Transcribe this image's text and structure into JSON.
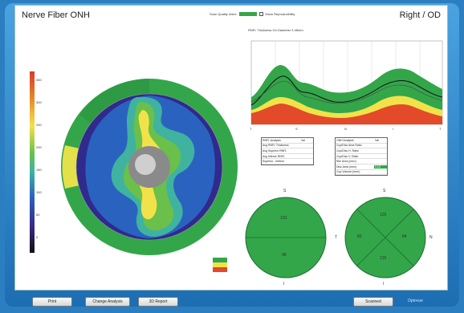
{
  "header": {
    "title": "Nerve Fiber ONH",
    "eye": "Right / OD"
  },
  "scan_quality": {
    "label": "Scan Quality Index",
    "value": ""
  },
  "repeatability": {
    "label": "Show Reproducibility"
  },
  "graph": {
    "title": "RNFL Thickness On Diameter 3.45mm"
  },
  "colorbar": {
    "ticks": [
      "350",
      "300",
      "250",
      "200",
      "150",
      "100",
      "50",
      "0"
    ]
  },
  "table_left": {
    "header": [
      "RNFL Analysis",
      "Val"
    ],
    "rows": [
      [
        "Avg RNFL Thickness",
        ""
      ],
      [
        "Avg Superior RNFL",
        ""
      ],
      [
        "Avg Inferior RNFL",
        ""
      ],
      [
        "Superior - Inferior",
        ""
      ]
    ]
  },
  "table_right": {
    "header": [
      "ONH Analysis",
      "Val"
    ],
    "rows": [
      [
        "Cup/Disc Area Ratio",
        ""
      ],
      [
        "Cup/Disc H. Ratio",
        ""
      ],
      [
        "Cup/Disc V. Ratio",
        ""
      ],
      [
        "Rim Area (mm²)",
        ""
      ],
      [
        "Disc Area (mm²)",
        "0.15"
      ],
      [
        "Cup Volume (mm³)",
        ""
      ]
    ]
  },
  "hemifield_circle": {
    "top": "S",
    "bottom": "I",
    "upper_value": "103",
    "lower_value": "98"
  },
  "quadrant_circle": {
    "top": "S",
    "bottom": "I",
    "left": "T",
    "right": "N",
    "s_value": "125",
    "i_value": "125",
    "t_value": "83",
    "n_value": "84"
  },
  "colors": {
    "normal": "#33a64a",
    "borderline": "#f2e24a",
    "outside": "#e24a2a"
  },
  "buttons": {
    "print": "Print",
    "change_analysis": "Change Analysis",
    "oct_report": "3D Report",
    "return": "Scanned"
  },
  "logo": "Optovue"
}
